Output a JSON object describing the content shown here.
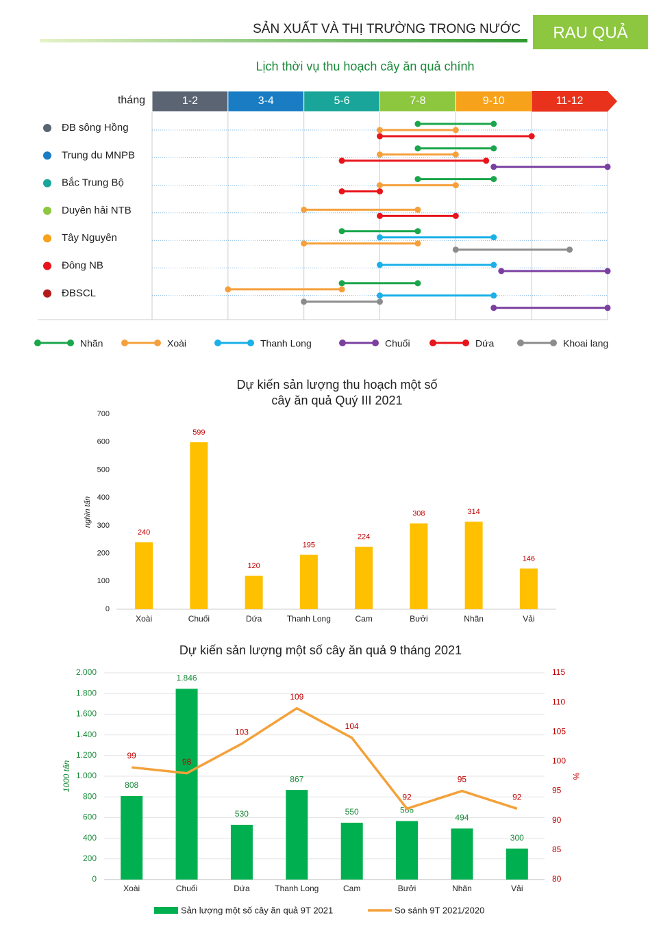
{
  "header": {
    "title": "SẢN XUẤT VÀ THỊ TRƯỜNG TRONG NƯỚC",
    "badge": "RAU QUẢ"
  },
  "chart_data": [
    {
      "type": "gantt",
      "title": "Lịch thời vụ thu hoạch cây ăn quả chính",
      "xlabel": "tháng",
      "categories": [
        "1-2",
        "3-4",
        "5-6",
        "7-8",
        "9-10",
        "11-12"
      ],
      "category_colors": [
        "#5a6473",
        "#1a7dc4",
        "#1aa59a",
        "#8dc63f",
        "#f7a21b",
        "#e8321b"
      ],
      "xlim": [
        1,
        13
      ],
      "series": [
        {
          "name": "Nhãn",
          "color": "#1aa64a"
        },
        {
          "name": "Xoài",
          "color": "#f5a03c"
        },
        {
          "name": "Thanh Long",
          "color": "#1ab0e8"
        },
        {
          "name": "Chuối",
          "color": "#7b3fa0"
        },
        {
          "name": "Dứa",
          "color": "#e8141b"
        },
        {
          "name": "Khoai lang",
          "color": "#8c8c8c"
        }
      ],
      "rows": [
        {
          "name": "ĐB sông Hồng",
          "color": "#5a6473",
          "segments": [
            {
              "series": 0,
              "values": [
                8,
                10
              ]
            },
            {
              "series": 1,
              "values": [
                7,
                9
              ]
            },
            {
              "series": 4,
              "values": [
                7,
                11
              ]
            }
          ]
        },
        {
          "name": "Trung du MNPB",
          "color": "#1a7dc4",
          "segments": [
            {
              "series": 0,
              "values": [
                8,
                10
              ]
            },
            {
              "series": 1,
              "values": [
                7,
                9
              ]
            },
            {
              "series": 4,
              "values": [
                6,
                9.8
              ]
            },
            {
              "series": 3,
              "values": [
                10,
                13
              ]
            }
          ]
        },
        {
          "name": "Bắc Trung Bộ",
          "color": "#1aa59a",
          "segments": [
            {
              "series": 0,
              "values": [
                8,
                10
              ]
            },
            {
              "series": 1,
              "values": [
                7,
                9
              ]
            },
            {
              "series": 4,
              "values": [
                6,
                7
              ]
            }
          ]
        },
        {
          "name": "Duyên hải NTB",
          "color": "#8dc63f",
          "segments": [
            {
              "series": 1,
              "values": [
                5,
                8
              ]
            },
            {
              "series": 4,
              "values": [
                7,
                9
              ]
            }
          ]
        },
        {
          "name": "Tây Nguyên",
          "color": "#f7a21b",
          "segments": [
            {
              "series": 0,
              "values": [
                6,
                8
              ]
            },
            {
              "series": 2,
              "values": [
                7,
                10
              ]
            },
            {
              "series": 1,
              "values": [
                5,
                8
              ]
            },
            {
              "series": 5,
              "values": [
                9,
                12
              ]
            }
          ]
        },
        {
          "name": "Đông NB",
          "color": "#e8141b",
          "segments": [
            {
              "series": 2,
              "values": [
                7,
                10
              ]
            },
            {
              "series": 3,
              "values": [
                10.2,
                13
              ]
            }
          ]
        },
        {
          "name": "ĐBSCL",
          "color": "#b31b1b",
          "segments": [
            {
              "series": 0,
              "values": [
                6,
                8
              ]
            },
            {
              "series": 1,
              "values": [
                3,
                6
              ]
            },
            {
              "series": 2,
              "values": [
                7,
                10
              ]
            },
            {
              "series": 5,
              "values": [
                5,
                7
              ]
            },
            {
              "series": 3,
              "values": [
                10,
                13
              ]
            }
          ]
        }
      ]
    },
    {
      "type": "bar",
      "title": [
        "Dự kiến sản lượng thu hoạch một số",
        "cây ăn quả Quý III 2021"
      ],
      "ylabel": "nghìn tấn",
      "categories": [
        "Xoài",
        "Chuối",
        "Dứa",
        "Thanh Long",
        "Cam",
        "Bưởi",
        "Nhãn",
        "Vải"
      ],
      "values": [
        240,
        599,
        120,
        195,
        224,
        308,
        314,
        146
      ],
      "color": "#ffc000",
      "label_color": "#c00000",
      "ylim": [
        0,
        700
      ],
      "yticks": [
        0,
        100,
        200,
        300,
        400,
        500,
        600,
        700
      ],
      "grid": false
    },
    {
      "type": "bar_line",
      "title": "Dự kiến sản lượng một số cây ăn quả 9 tháng 2021",
      "ylabel": "1000 tấn",
      "y2label": "%",
      "categories": [
        "Xoài",
        "Chuối",
        "Dứa",
        "Thanh Long",
        "Cam",
        "Bưởi",
        "Nhãn",
        "Vải"
      ],
      "series": [
        {
          "name": "Sản lượng một số cây ăn quả 9T 2021",
          "type": "bar",
          "color": "#00b050",
          "label_color": "#1a8a3a",
          "values": [
            808,
            1846,
            530,
            867,
            550,
            566,
            494,
            300
          ],
          "value_labels": [
            "808",
            "1.846",
            "530",
            "867",
            "550",
            "566",
            "494",
            "300"
          ]
        },
        {
          "name": "So sánh 9T 2021/2020",
          "type": "line",
          "axis": "y2",
          "color": "#f4a13a",
          "label_color": "#c00000",
          "values": [
            99,
            98,
            103,
            109,
            104,
            92,
            95,
            92
          ]
        }
      ],
      "ylim": [
        0,
        2000
      ],
      "yticks": [
        0,
        200,
        400,
        600,
        800,
        {
          "value": 1000,
          "label": "1.000"
        },
        {
          "value": 1200,
          "label": "1.200"
        },
        {
          "value": 1400,
          "label": "1.400"
        },
        {
          "value": 1600,
          "label": "1.600"
        },
        {
          "value": 1800,
          "label": "1.800"
        },
        {
          "value": 2000,
          "label": "2.000"
        }
      ],
      "y2lim": [
        80,
        115
      ],
      "y2ticks": [
        80,
        85,
        90,
        95,
        100,
        105,
        110,
        115
      ],
      "grid": true,
      "axis_color": "#1a8a3a",
      "axis2_color": "#c00000"
    }
  ]
}
